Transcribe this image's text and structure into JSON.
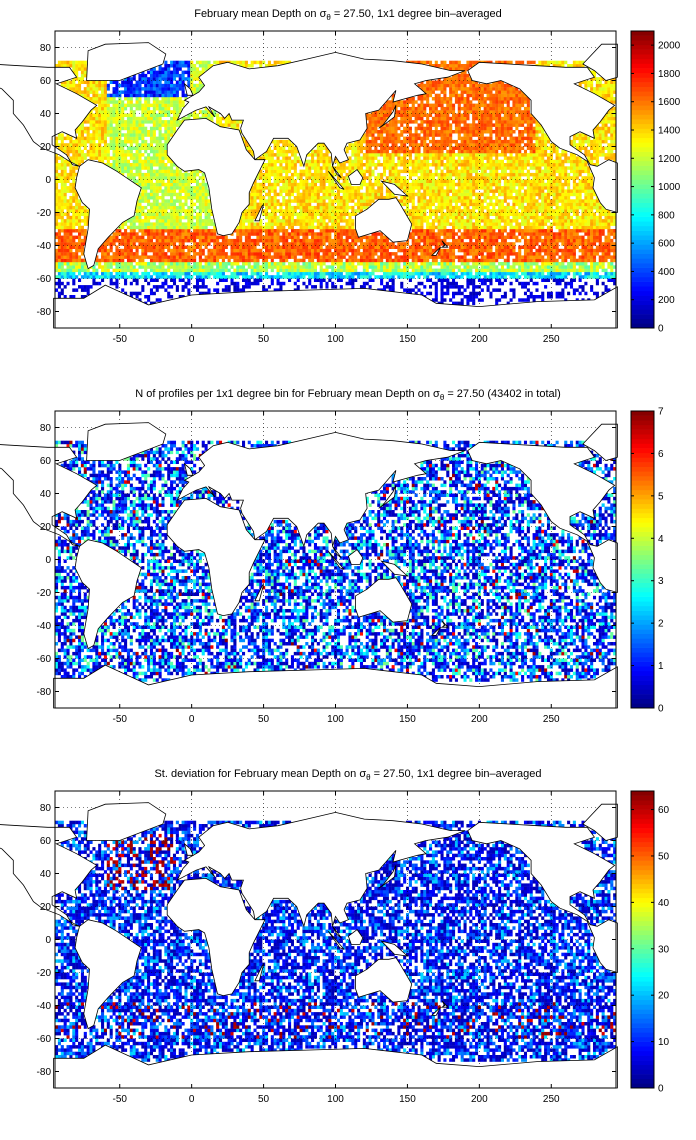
{
  "chart_data": [
    {
      "type": "heatmap",
      "title_parts": [
        "February mean Depth on ",
        "σ",
        "θ",
        " = 27.50, 1x1 degree bin–averaged"
      ],
      "xticks": [
        -50,
        0,
        50,
        100,
        150,
        200,
        250
      ],
      "yticks": [
        80,
        60,
        40,
        20,
        0,
        -20,
        -40,
        -60,
        -80
      ],
      "xlim": [
        -95,
        295
      ],
      "ylim": [
        -90,
        90
      ],
      "grid": true,
      "colormap": "jet",
      "clim": [
        0,
        2100
      ],
      "colorbar_ticks": [
        0,
        200,
        400,
        600,
        800,
        1000,
        1200,
        1400,
        1600,
        1800,
        2000
      ]
    },
    {
      "type": "heatmap",
      "title_parts": [
        "N of profiles per 1x1 degree bin for February mean Depth on ",
        "σ",
        "θ",
        " = 27.50 (43402 in total)"
      ],
      "xticks": [
        -50,
        0,
        50,
        100,
        150,
        200,
        250
      ],
      "yticks": [
        80,
        60,
        40,
        20,
        0,
        -20,
        -40,
        -60,
        -80
      ],
      "xlim": [
        -95,
        295
      ],
      "ylim": [
        -90,
        90
      ],
      "grid": true,
      "colormap": "jet",
      "clim": [
        0,
        7
      ],
      "colorbar_ticks": [
        0,
        1,
        2,
        3,
        4,
        5,
        6,
        7
      ]
    },
    {
      "type": "heatmap",
      "title_parts": [
        "St. deviation for February mean Depth on ",
        "σ",
        "θ",
        " = 27.50, 1x1 degree bin–averaged"
      ],
      "xticks": [
        -50,
        0,
        50,
        100,
        150,
        200,
        250
      ],
      "yticks": [
        80,
        60,
        40,
        20,
        0,
        -20,
        -40,
        -60,
        -80
      ],
      "xlim": [
        -95,
        295
      ],
      "ylim": [
        -90,
        90
      ],
      "grid": true,
      "colormap": "jet",
      "clim": [
        0,
        64
      ],
      "colorbar_ticks": [
        0,
        10,
        20,
        30,
        40,
        50,
        60
      ]
    }
  ]
}
